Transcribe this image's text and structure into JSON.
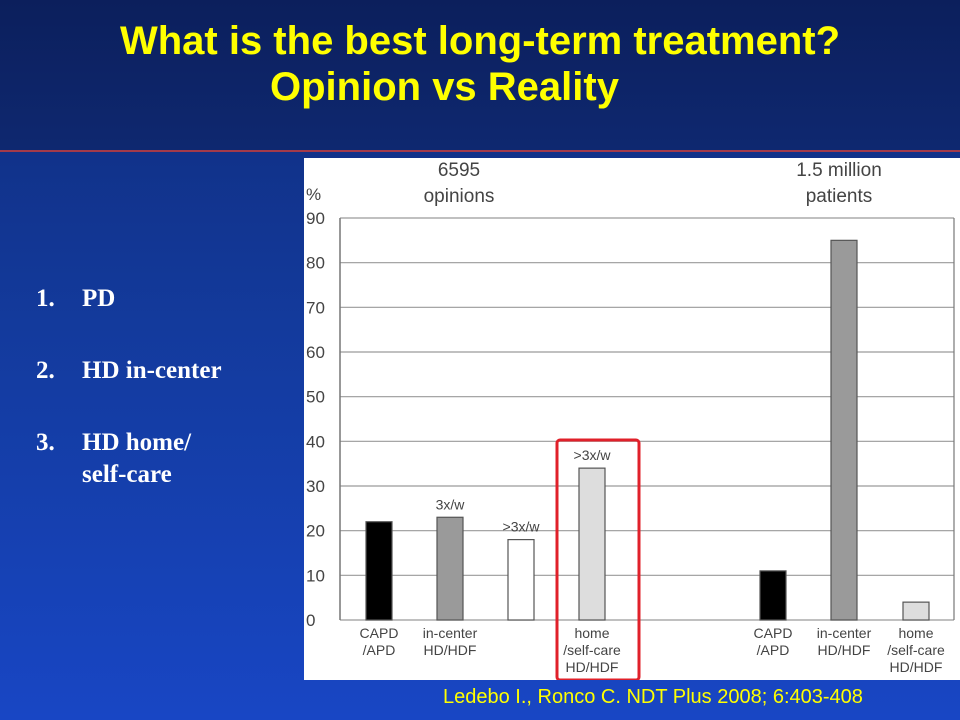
{
  "slide": {
    "title_line1": "What is the best long-term treatment?",
    "title_line2": "Opinion vs Reality",
    "list": [
      {
        "num": "1.",
        "text": "PD"
      },
      {
        "num": "2.",
        "text": "HD in-center"
      },
      {
        "num": "3.",
        "text": "HD home/",
        "text2": "self-care"
      }
    ],
    "citation": "Ledebo I., Ronco C. NDT Plus 2008; 6:403-408"
  },
  "colors": {
    "title": "#ffff00",
    "highlight_box": "#e0202a",
    "bar_black": "#000000",
    "bar_gray": "#9a9a9a",
    "bar_white": "#ffffff",
    "bar_light": "#dddddd"
  },
  "chart_data": {
    "type": "bar",
    "ylabel": "%",
    "ylim": [
      0,
      90
    ],
    "yticks": [
      0,
      10,
      20,
      30,
      40,
      50,
      60,
      70,
      80,
      90
    ],
    "grid": true,
    "groups": [
      {
        "heading_line1": "6595",
        "heading_line2": "opinions"
      },
      {
        "heading_line1": "1.5 million",
        "heading_line2": "patients"
      }
    ],
    "bars": [
      {
        "group": 0,
        "label": [
          "CAPD",
          "/APD"
        ],
        "value": 22,
        "color": "#000000",
        "annotation": ""
      },
      {
        "group": 0,
        "label": [
          "in-center",
          "HD/HDF"
        ],
        "value": 23,
        "color": "#9a9a9a",
        "annotation": "3x/w"
      },
      {
        "group": 0,
        "label": [],
        "value": 18,
        "color": "#ffffff",
        "annotation": ">3x/w"
      },
      {
        "group": 0,
        "label": [
          "home",
          "/self-care",
          "HD/HDF"
        ],
        "value": 34,
        "color": "#dddddd",
        "annotation": ">3x/w"
      },
      {
        "group": 1,
        "label": [
          "CAPD",
          "/APD"
        ],
        "value": 11,
        "color": "#000000",
        "annotation": ""
      },
      {
        "group": 1,
        "label": [
          "in-center",
          "HD/HDF"
        ],
        "value": 85,
        "color": "#9a9a9a",
        "annotation": ""
      },
      {
        "group": 1,
        "label": [
          "home",
          "/self-care",
          "HD/HDF"
        ],
        "value": 4,
        "color": "#dddddd",
        "annotation": ""
      }
    ]
  }
}
